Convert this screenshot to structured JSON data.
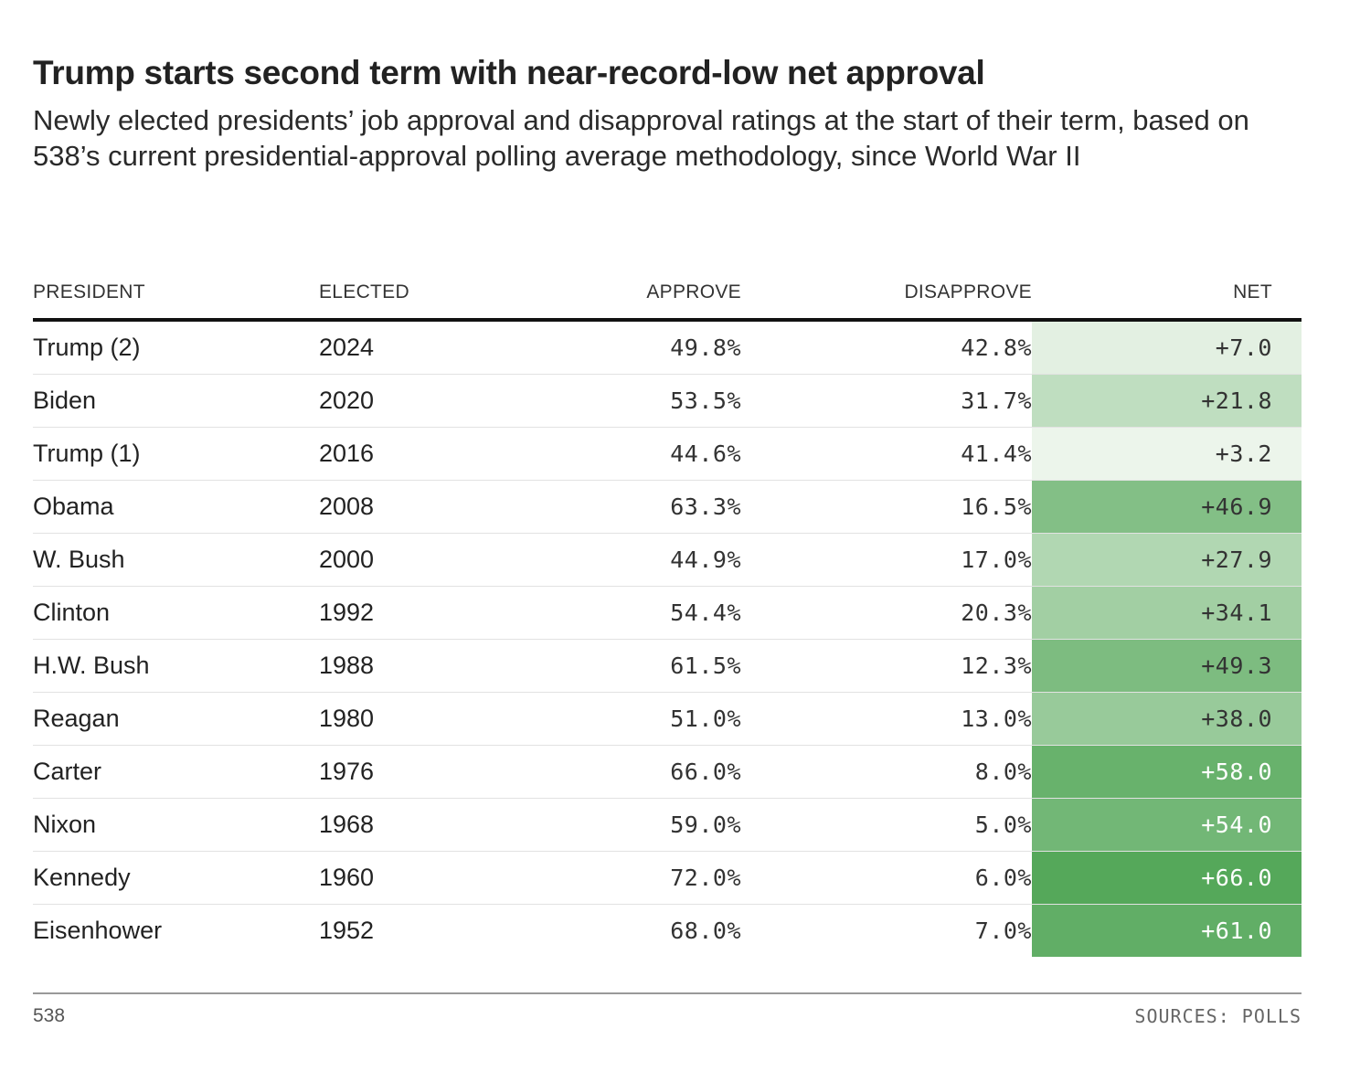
{
  "header": {
    "title": "Trump starts second term with near-record-low net approval",
    "subtitle": "Newly elected presidents’ job approval and disapproval ratings at the start of their term, based on 538’s current presidential-approval polling average methodology, since World War II"
  },
  "chart_data": {
    "type": "table",
    "title": "Trump starts second term with near-record-low net approval",
    "subtitle": "Newly elected presidents’ job approval and disapproval ratings at the start of their term, based on 538’s current presidential-approval polling average methodology, since World War II",
    "columns": [
      "PRESIDENT",
      "ELECTED",
      "APPROVE",
      "DISAPPROVE",
      "NET"
    ],
    "rows": [
      {
        "president": "Trump (2)",
        "elected": "2024",
        "approve": "49.8%",
        "disapprove": "42.8%",
        "net": "+7.0",
        "net_value": 7.0
      },
      {
        "president": "Biden",
        "elected": "2020",
        "approve": "53.5%",
        "disapprove": "31.7%",
        "net": "+21.8",
        "net_value": 21.8
      },
      {
        "president": "Trump (1)",
        "elected": "2016",
        "approve": "44.6%",
        "disapprove": "41.4%",
        "net": "+3.2",
        "net_value": 3.2
      },
      {
        "president": "Obama",
        "elected": "2008",
        "approve": "63.3%",
        "disapprove": "16.5%",
        "net": "+46.9",
        "net_value": 46.9
      },
      {
        "president": "W. Bush",
        "elected": "2000",
        "approve": "44.9%",
        "disapprove": "17.0%",
        "net": "+27.9",
        "net_value": 27.9
      },
      {
        "president": "Clinton",
        "elected": "1992",
        "approve": "54.4%",
        "disapprove": "20.3%",
        "net": "+34.1",
        "net_value": 34.1
      },
      {
        "president": "H.W. Bush",
        "elected": "1988",
        "approve": "61.5%",
        "disapprove": "12.3%",
        "net": "+49.3",
        "net_value": 49.3
      },
      {
        "president": "Reagan",
        "elected": "1980",
        "approve": "51.0%",
        "disapprove": "13.0%",
        "net": "+38.0",
        "net_value": 38.0
      },
      {
        "president": "Carter",
        "elected": "1976",
        "approve": "66.0%",
        "disapprove": "8.0%",
        "net": "+58.0",
        "net_value": 58.0
      },
      {
        "president": "Nixon",
        "elected": "1968",
        "approve": "59.0%",
        "disapprove": "5.0%",
        "net": "+54.0",
        "net_value": 54.0
      },
      {
        "president": "Kennedy",
        "elected": "1960",
        "approve": "72.0%",
        "disapprove": "6.0%",
        "net": "+66.0",
        "net_value": 66.0
      },
      {
        "president": "Eisenhower",
        "elected": "1952",
        "approve": "68.0%",
        "disapprove": "7.0%",
        "net": "+61.0",
        "net_value": 61.0
      }
    ],
    "net_color_scale": {
      "low": "#f4f9f2",
      "high": "#55a85a",
      "domain": [
        0,
        66
      ]
    }
  },
  "footer": {
    "credit": "538",
    "sources": "SOURCES: POLLS"
  }
}
